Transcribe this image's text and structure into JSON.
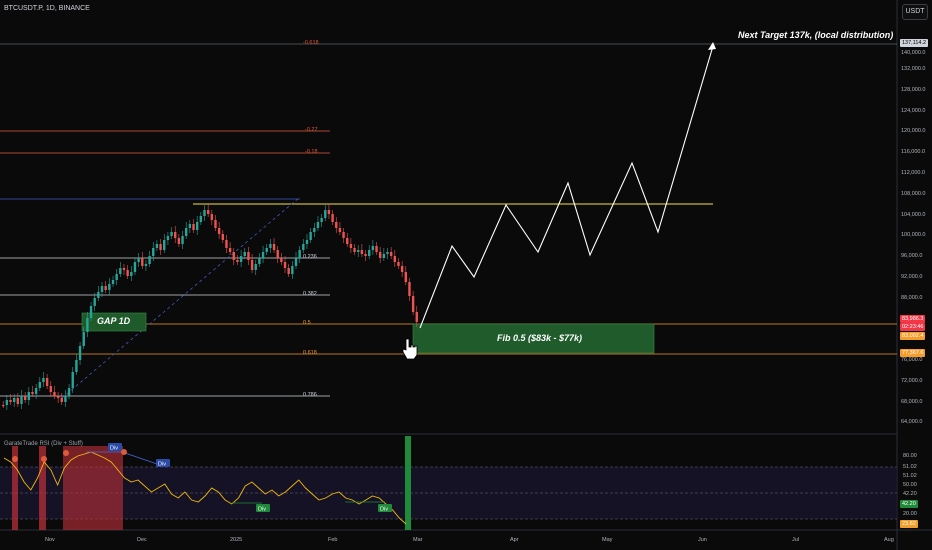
{
  "header": {
    "symbol_line": "BTCUSDT.P, 1D, BINANCE",
    "currency_button": "USDT"
  },
  "colors": {
    "background": "#0a0a0a",
    "up_candle": "#26a69a",
    "down_candle": "#ef5350",
    "resistance_line": "#f7e14b",
    "fib_orange": "#f59d2a",
    "fib_red": "#e05a3a",
    "zone_green": "#1e5a2a",
    "rsi_line": "#f0b90b",
    "price_tag_red": "#f23645",
    "price_tag_orange": "#f59d2a"
  },
  "price_axis": {
    "labels": [
      "140,000.0",
      "132,000.0",
      "128,000.0",
      "124,000.0",
      "120,000.0",
      "116,000.0",
      "112,000.0",
      "108,000.0",
      "104,000.0",
      "100,000.0",
      "96,000.0",
      "92,000.0",
      "88,000.0",
      "76,000.0",
      "72,000.0",
      "68,000.0",
      "64,000.0"
    ]
  },
  "price_tags": {
    "target": "137,114.2",
    "current": "83,986.3",
    "countdown": "02:23:46",
    "fib50": "83,092.4",
    "fib618": "77,367.6"
  },
  "rsi_axis": {
    "labels": [
      "80.00",
      "51.02",
      "51.02",
      "50.00",
      "42.20",
      "20.00"
    ],
    "tag_value": "42.20",
    "tag_low": "23.82"
  },
  "time_axis": {
    "labels": [
      "Nov",
      "Dec",
      "2025",
      "Feb",
      "Mar",
      "Apr",
      "May",
      "Jun",
      "Jul",
      "Aug"
    ]
  },
  "fib_levels": [
    {
      "label": "-0.618"
    },
    {
      "label": "-0.27"
    },
    {
      "label": "-0.18"
    },
    {
      "label": "0.236"
    },
    {
      "label": "0.382"
    },
    {
      "label": "0.5"
    },
    {
      "label": "0.618"
    },
    {
      "label": "0.786"
    }
  ],
  "annotations": {
    "next_target": "Next Target 137k, (local distribution)",
    "gap": "GAP 1D",
    "fib_zone": "Fib 0.5 ($83k - $77k)"
  },
  "rsi": {
    "title": "GarateTrade RSI (Div + Stuff)",
    "div_label": "Div"
  }
}
